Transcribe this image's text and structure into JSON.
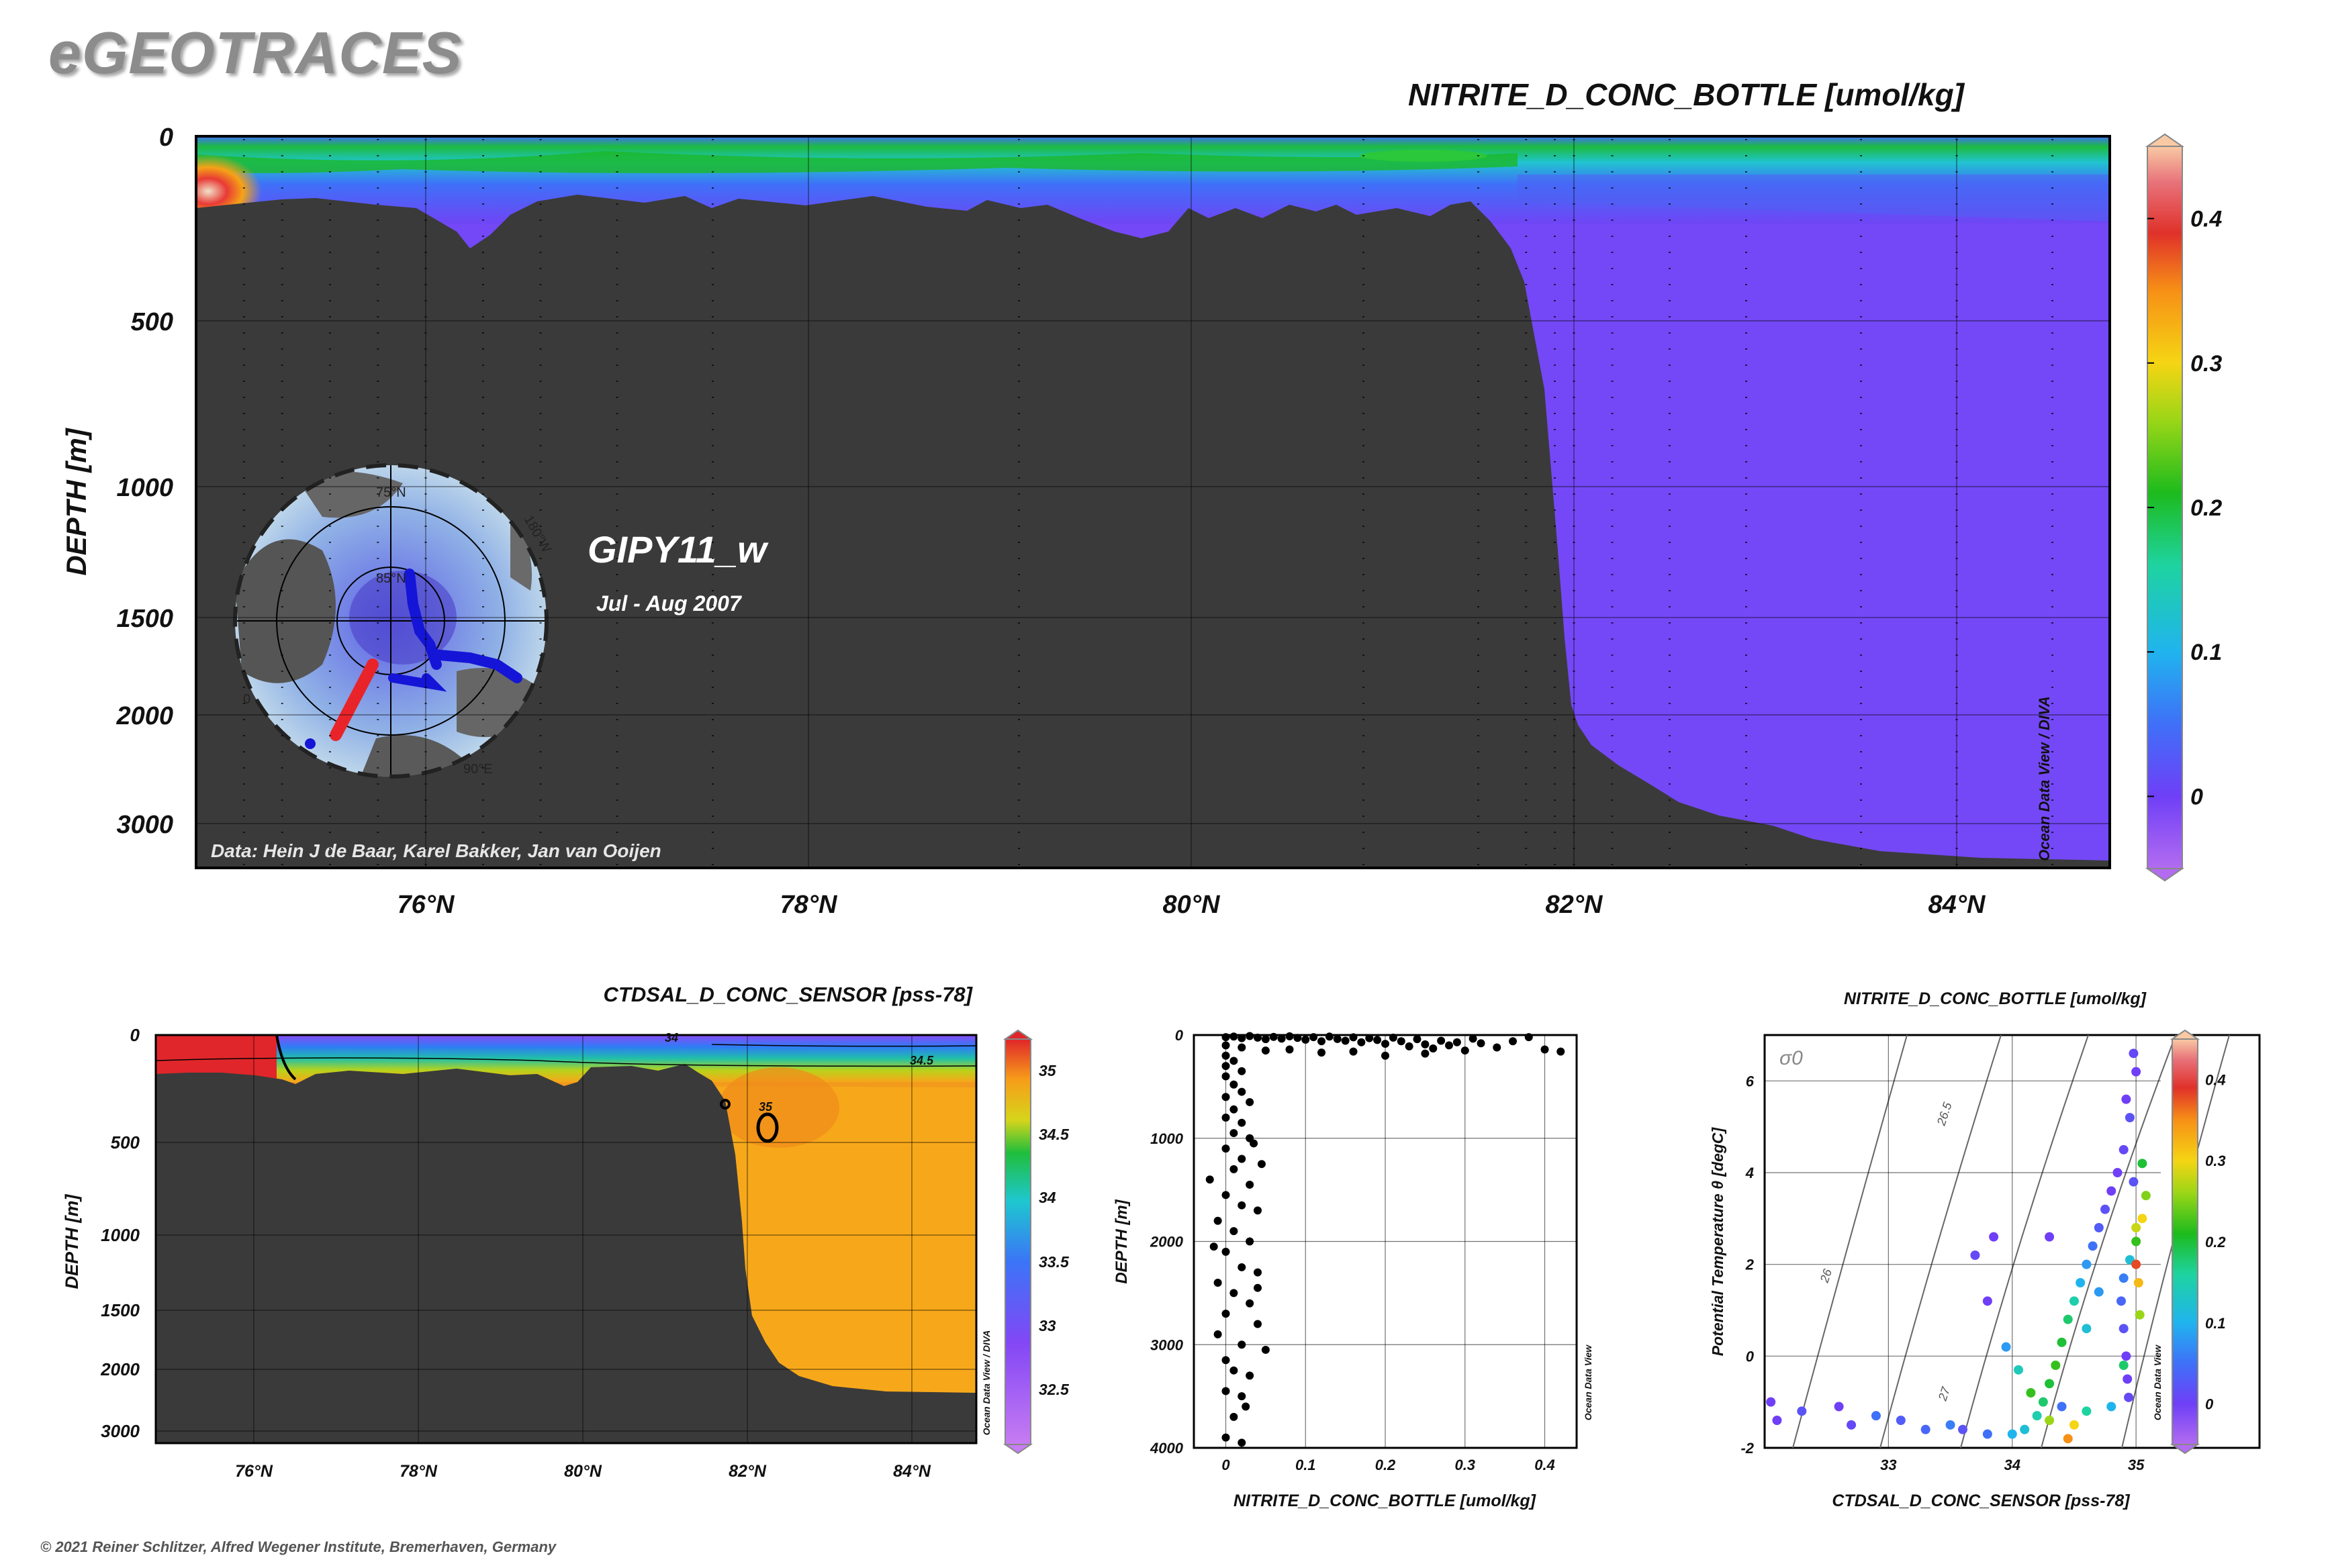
{
  "brand": "eGEOTRACES",
  "copyright": "© 2021 Reiner Schlitzer, Alfred Wegener Institute, Bremerhaven, Germany",
  "colors": {
    "land": "#3a3a3a",
    "violet": "#7a4cf8",
    "salt_body": "#f7a81a"
  },
  "chart_data": [
    {
      "type": "heatmap",
      "name": "main-section",
      "title": "NITRITE_D_CONC_BOTTLE [umol/kg]",
      "ylabel": "DEPTH [m]",
      "x_ticks": [
        "76°N",
        "78°N",
        "80°N",
        "82°N",
        "84°N"
      ],
      "y_ticks": [
        "0",
        "500",
        "1000",
        "1500",
        "2000",
        "3000"
      ],
      "xlim": [
        74.8,
        84.8
      ],
      "colorbar_ticks": [
        "0.4",
        "0.3",
        "0.2",
        "0.1",
        "0"
      ],
      "colorbar_range": [
        -0.05,
        0.45
      ],
      "cruise": "GIPY11_w",
      "period": "Jul - Aug 2007",
      "credit": "Data: Hein J de Baar, Karel Bakker, Jan van Ooijen",
      "side_label": "Ocean Data View / DIVA",
      "map_labels": [
        "75°N",
        "85°N",
        "90°E",
        "0",
        "180°W"
      ]
    },
    {
      "type": "heatmap",
      "name": "salinity-section",
      "title": "CTDSAL_D_CONC_SENSOR [pss-78]",
      "ylabel": "DEPTH [m]",
      "x_ticks": [
        "76°N",
        "78°N",
        "80°N",
        "82°N",
        "84°N"
      ],
      "y_ticks": [
        "0",
        "500",
        "1000",
        "1500",
        "2000",
        "3000"
      ],
      "colorbar_ticks": [
        "35",
        "34.5",
        "34",
        "33.5",
        "33",
        "32.5"
      ],
      "contour_labels": [
        "34",
        "34.5",
        "35"
      ],
      "side_label": "Ocean Data View / DIVA"
    },
    {
      "type": "scatter",
      "name": "nitrite-profile",
      "xlabel": "NITRITE_D_CONC_BOTTLE [umol/kg]",
      "ylabel": "DEPTH [m]",
      "xlim": [
        -0.04,
        0.44
      ],
      "ylim": [
        0,
        4000
      ],
      "x_ticks": [
        "0",
        "0.1",
        "0.2",
        "0.3",
        "0.4"
      ],
      "y_ticks": [
        "0",
        "1000",
        "2000",
        "3000",
        "4000"
      ],
      "side_label": "Ocean Data View",
      "points": [
        {
          "x": 0.0,
          "y": 20
        },
        {
          "x": 0.01,
          "y": 15
        },
        {
          "x": 0.02,
          "y": 30
        },
        {
          "x": 0.03,
          "y": 10
        },
        {
          "x": 0.04,
          "y": 25
        },
        {
          "x": 0.05,
          "y": 40
        },
        {
          "x": 0.06,
          "y": 18
        },
        {
          "x": 0.07,
          "y": 35
        },
        {
          "x": 0.08,
          "y": 12
        },
        {
          "x": 0.09,
          "y": 28
        },
        {
          "x": 0.1,
          "y": 45
        },
        {
          "x": 0.11,
          "y": 20
        },
        {
          "x": 0.12,
          "y": 60
        },
        {
          "x": 0.13,
          "y": 15
        },
        {
          "x": 0.14,
          "y": 38
        },
        {
          "x": 0.15,
          "y": 55
        },
        {
          "x": 0.16,
          "y": 22
        },
        {
          "x": 0.17,
          "y": 70
        },
        {
          "x": 0.18,
          "y": 30
        },
        {
          "x": 0.19,
          "y": 48
        },
        {
          "x": 0.2,
          "y": 85
        },
        {
          "x": 0.21,
          "y": 25
        },
        {
          "x": 0.22,
          "y": 60
        },
        {
          "x": 0.23,
          "y": 110
        },
        {
          "x": 0.24,
          "y": 40
        },
        {
          "x": 0.25,
          "y": 90
        },
        {
          "x": 0.26,
          "y": 130
        },
        {
          "x": 0.27,
          "y": 55
        },
        {
          "x": 0.28,
          "y": 100
        },
        {
          "x": 0.29,
          "y": 70
        },
        {
          "x": 0.3,
          "y": 150
        },
        {
          "x": 0.31,
          "y": 35
        },
        {
          "x": 0.32,
          "y": 80
        },
        {
          "x": 0.34,
          "y": 120
        },
        {
          "x": 0.36,
          "y": 60
        },
        {
          "x": 0.38,
          "y": 20
        },
        {
          "x": 0.4,
          "y": 140
        },
        {
          "x": 0.42,
          "y": 160
        },
        {
          "x": 0.02,
          "y": 120
        },
        {
          "x": 0.05,
          "y": 150
        },
        {
          "x": 0.08,
          "y": 140
        },
        {
          "x": 0.12,
          "y": 170
        },
        {
          "x": 0.16,
          "y": 160
        },
        {
          "x": 0.2,
          "y": 200
        },
        {
          "x": 0.25,
          "y": 180
        },
        {
          "x": 0.0,
          "y": 100
        },
        {
          "x": 0.0,
          "y": 200
        },
        {
          "x": 0.0,
          "y": 300
        },
        {
          "x": 0.01,
          "y": 250
        },
        {
          "x": 0.02,
          "y": 350
        },
        {
          "x": 0.0,
          "y": 400
        },
        {
          "x": 0.01,
          "y": 480
        },
        {
          "x": 0.02,
          "y": 550
        },
        {
          "x": 0.0,
          "y": 600
        },
        {
          "x": 0.03,
          "y": 650
        },
        {
          "x": 0.01,
          "y": 720
        },
        {
          "x": 0.0,
          "y": 800
        },
        {
          "x": 0.02,
          "y": 850
        },
        {
          "x": 0.01,
          "y": 950
        },
        {
          "x": 0.03,
          "y": 1000
        },
        {
          "x": 0.0,
          "y": 1100
        },
        {
          "x": 0.02,
          "y": 1200
        },
        {
          "x": 0.01,
          "y": 1300
        },
        {
          "x": -0.02,
          "y": 1400
        },
        {
          "x": 0.03,
          "y": 1450
        },
        {
          "x": 0.0,
          "y": 1550
        },
        {
          "x": 0.02,
          "y": 1650
        },
        {
          "x": 0.04,
          "y": 1700
        },
        {
          "x": -0.01,
          "y": 1800
        },
        {
          "x": 0.01,
          "y": 1900
        },
        {
          "x": 0.03,
          "y": 2000
        },
        {
          "x": 0.0,
          "y": 2100
        },
        {
          "x": 0.02,
          "y": 2250
        },
        {
          "x": 0.04,
          "y": 2300
        },
        {
          "x": -0.01,
          "y": 2400
        },
        {
          "x": 0.01,
          "y": 2500
        },
        {
          "x": 0.03,
          "y": 2600
        },
        {
          "x": 0.0,
          "y": 2700
        },
        {
          "x": 0.04,
          "y": 2800
        },
        {
          "x": -0.01,
          "y": 2900
        },
        {
          "x": 0.02,
          "y": 3000
        },
        {
          "x": 0.05,
          "y": 3050
        },
        {
          "x": 0.0,
          "y": 3150
        },
        {
          "x": 0.01,
          "y": 3250
        },
        {
          "x": 0.03,
          "y": 3300
        },
        {
          "x": 0.0,
          "y": 3450
        },
        {
          "x": 0.02,
          "y": 3500
        },
        {
          "x": 0.01,
          "y": 3700
        },
        {
          "x": 0.0,
          "y": 3900
        },
        {
          "x": 0.02,
          "y": 3950
        },
        {
          "x": 0.035,
          "y": 1050
        },
        {
          "x": 0.04,
          "y": 2450
        },
        {
          "x": 0.045,
          "y": 1250
        },
        {
          "x": -0.015,
          "y": 2050
        },
        {
          "x": 0.025,
          "y": 3600
        }
      ]
    },
    {
      "type": "scatter",
      "name": "ts-diagram",
      "title": "NITRITE_D_CONC_BOTTLE [umol/kg]",
      "xlabel": "CTDSAL_D_CONC_SENSOR [pss-78]",
      "ylabel": "Potential Temperature θ [degC]",
      "xlim": [
        32.0,
        35.2
      ],
      "ylim": [
        -2,
        7
      ],
      "x_ticks": [
        "33",
        "34",
        "35"
      ],
      "y_ticks": [
        "6",
        "4",
        "2",
        "0",
        "-2"
      ],
      "isopycnal_labels": [
        "σ0",
        "26",
        "26.5",
        "27"
      ],
      "colorbar_ticks": [
        "0.4",
        "0.3",
        "0.2",
        "0.1",
        "0"
      ],
      "colorbar_range": [
        -0.05,
        0.45
      ],
      "side_label": "Ocean Data View",
      "points": [
        {
          "s": 32.05,
          "t": -1.0,
          "v": 0.0
        },
        {
          "s": 32.3,
          "t": -1.2,
          "v": 0.02
        },
        {
          "s": 32.6,
          "t": -1.1,
          "v": 0.0
        },
        {
          "s": 32.7,
          "t": -1.5,
          "v": 0.01
        },
        {
          "s": 32.9,
          "t": -1.3,
          "v": 0.05
        },
        {
          "s": 33.1,
          "t": -1.4,
          "v": 0.03
        },
        {
          "s": 33.3,
          "t": -1.6,
          "v": 0.04
        },
        {
          "s": 33.6,
          "t": -1.6,
          "v": 0.02
        },
        {
          "s": 33.8,
          "t": -1.7,
          "v": 0.05
        },
        {
          "s": 34.0,
          "t": -1.7,
          "v": 0.1
        },
        {
          "s": 34.1,
          "t": -1.6,
          "v": 0.12
        },
        {
          "s": 34.2,
          "t": -1.3,
          "v": 0.15
        },
        {
          "s": 34.25,
          "t": -1.0,
          "v": 0.18
        },
        {
          "s": 34.3,
          "t": -0.6,
          "v": 0.2
        },
        {
          "s": 34.35,
          "t": -0.2,
          "v": 0.22
        },
        {
          "s": 34.4,
          "t": 0.3,
          "v": 0.2
        },
        {
          "s": 34.45,
          "t": 0.8,
          "v": 0.18
        },
        {
          "s": 34.5,
          "t": 1.2,
          "v": 0.15
        },
        {
          "s": 34.55,
          "t": 1.6,
          "v": 0.1
        },
        {
          "s": 34.6,
          "t": 2.0,
          "v": 0.08
        },
        {
          "s": 34.65,
          "t": 2.4,
          "v": 0.05
        },
        {
          "s": 34.7,
          "t": 2.8,
          "v": 0.03
        },
        {
          "s": 34.75,
          "t": 3.2,
          "v": 0.02
        },
        {
          "s": 34.8,
          "t": 3.6,
          "v": 0.0
        },
        {
          "s": 34.85,
          "t": 4.0,
          "v": 0.0
        },
        {
          "s": 34.9,
          "t": 4.5,
          "v": 0.01
        },
        {
          "s": 34.95,
          "t": 5.2,
          "v": 0.02
        },
        {
          "s": 35.0,
          "t": 6.2,
          "v": 0.0
        },
        {
          "s": 34.98,
          "t": 6.6,
          "v": 0.01
        },
        {
          "s": 34.92,
          "t": 5.6,
          "v": 0.0
        },
        {
          "s": 35.05,
          "t": 4.2,
          "v": 0.2
        },
        {
          "s": 35.08,
          "t": 3.5,
          "v": 0.25
        },
        {
          "s": 35.05,
          "t": 3.0,
          "v": 0.3
        },
        {
          "s": 35.0,
          "t": 2.5,
          "v": 0.22
        },
        {
          "s": 34.95,
          "t": 2.1,
          "v": 0.12
        },
        {
          "s": 34.9,
          "t": 1.7,
          "v": 0.06
        },
        {
          "s": 34.88,
          "t": 1.2,
          "v": 0.04
        },
        {
          "s": 34.9,
          "t": 0.6,
          "v": 0.02
        },
        {
          "s": 34.92,
          "t": 0.0,
          "v": 0.0
        },
        {
          "s": 34.93,
          "t": -0.5,
          "v": 0.0
        },
        {
          "s": 34.94,
          "t": -0.9,
          "v": 0.01
        },
        {
          "s": 34.8,
          "t": -1.1,
          "v": 0.1
        },
        {
          "s": 34.6,
          "t": -1.2,
          "v": 0.16
        },
        {
          "s": 34.5,
          "t": -1.5,
          "v": 0.3
        },
        {
          "s": 34.45,
          "t": -1.8,
          "v": 0.35
        },
        {
          "s": 34.3,
          "t": -1.4,
          "v": 0.26
        },
        {
          "s": 34.15,
          "t": -0.8,
          "v": 0.22
        },
        {
          "s": 34.05,
          "t": -0.3,
          "v": 0.14
        },
        {
          "s": 33.95,
          "t": 0.2,
          "v": 0.08
        },
        {
          "s": 33.8,
          "t": 1.2,
          "v": 0.0
        },
        {
          "s": 33.7,
          "t": 2.2,
          "v": 0.01
        },
        {
          "s": 33.85,
          "t": 2.6,
          "v": 0.0
        },
        {
          "s": 34.3,
          "t": 2.6,
          "v": 0.0
        },
        {
          "s": 35.0,
          "t": 2.8,
          "v": 0.28
        },
        {
          "s": 35.02,
          "t": 1.6,
          "v": 0.32
        },
        {
          "s": 35.03,
          "t": 0.9,
          "v": 0.26
        },
        {
          "s": 35.0,
          "t": 2.0,
          "v": 0.38
        },
        {
          "s": 34.9,
          "t": -0.2,
          "v": 0.18
        },
        {
          "s": 34.6,
          "t": 0.6,
          "v": 0.12
        },
        {
          "s": 34.7,
          "t": 1.4,
          "v": 0.08
        },
        {
          "s": 34.4,
          "t": -1.1,
          "v": 0.05
        },
        {
          "s": 33.5,
          "t": -1.5,
          "v": 0.06
        },
        {
          "s": 32.1,
          "t": -1.4,
          "v": 0.0
        },
        {
          "s": 34.98,
          "t": 3.8,
          "v": 0.02
        }
      ]
    }
  ]
}
